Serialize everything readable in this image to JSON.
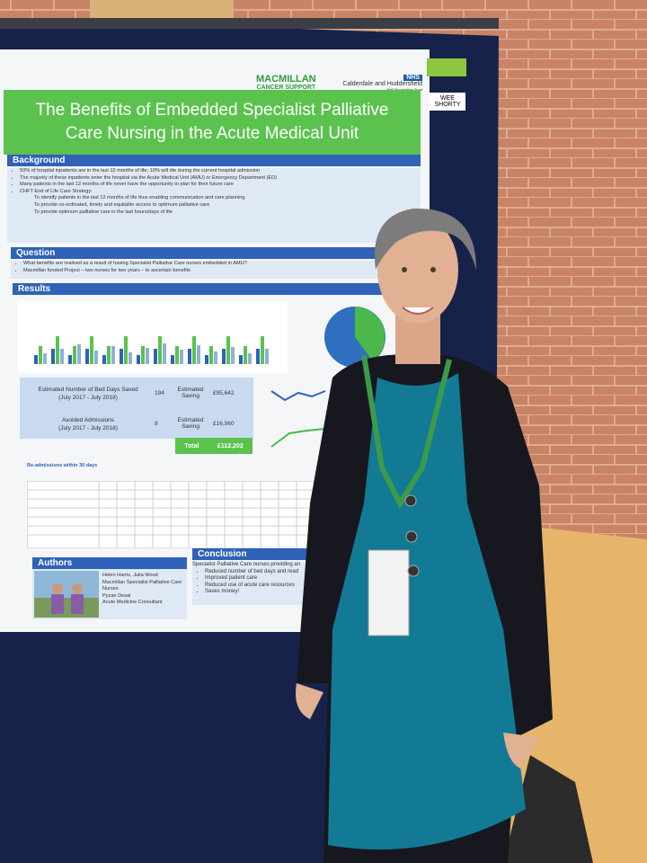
{
  "poster": {
    "logos": {
      "macmillan": "MACMILLAN",
      "macmillan_sub": "CANCER SUPPORT",
      "nhs": "NHS",
      "trust": "Calderdale and Huddersfield",
      "trust_sub": "NHS Foundation Trust"
    },
    "tag": "WEE SHORTY",
    "title": "The Benefits of Embedded Specialist Palliative Care Nursing in the Acute Medical Unit",
    "background": {
      "heading": "Background",
      "items": [
        "50% of hospital inpatients are in the last 12 months of life; 10% will die during the current hospital admission",
        "The majority of these inpatients enter the hospital via the Acute Medical Unit (AMU) or Emergency Department (ED)",
        "Many patients in the last 12 months of life never have the opportunity to plan for their future care",
        "CHFT End of Life Care Strategy:"
      ],
      "subitems": [
        "To identify patients in the last 12 months of life thus enabling communication and care planning",
        "To provide co-ordinated, timely and equitable access to optimum palliative care",
        "To provide optimum palliative care in the last hours/days of life"
      ]
    },
    "question": {
      "heading": "Question",
      "items": [
        "What benefits are realised as a result of having Specialist Palliative Care nurses embedded in AMU?",
        "Macmillan funded Project – two nurses for two years – to ascertain benefits"
      ]
    },
    "results": {
      "heading": "Results",
      "rows": [
        {
          "label": "Estimated Number of Bed Days Saved",
          "period": "(July 2017 - July 2018)",
          "count": "194",
          "saving_label": "Estimated Saving",
          "saving": "£95,642"
        },
        {
          "label": "Avoided Admissions",
          "period": "(July 2017 - July 2018)",
          "count": "8",
          "saving_label": "Estimated Saving",
          "saving": "£16,560"
        }
      ],
      "total_label": "Total",
      "total": "£112,202",
      "readmissions": "Re-admissions within 30 days"
    },
    "authors": {
      "heading": "Authors",
      "names": "Helen Harris, Julia Wood",
      "role": "Macmillan Specialist Palliative Care Nurses",
      "consultant": "Pyzan Desai",
      "consultant_role": "Acute Medicine Consultant"
    },
    "conclusion": {
      "heading": "Conclusion",
      "intro": "Specialist Palliative Care nurses providing an",
      "items": [
        "Reduced number of bed days and read",
        "Improved patient care",
        "Reduced use of acute care resources",
        "Saves money!"
      ]
    }
  }
}
